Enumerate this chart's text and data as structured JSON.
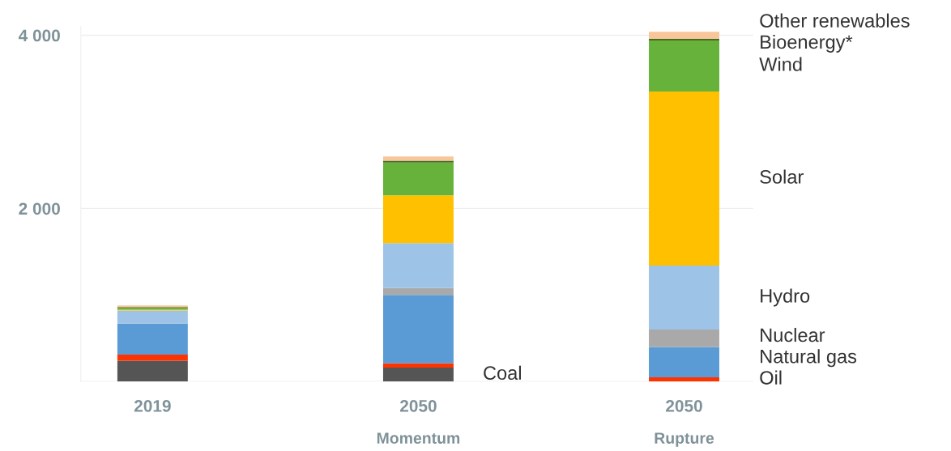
{
  "chart_data": {
    "type": "bar",
    "stacked": true,
    "categories": [
      "2019",
      "2050\nMomentum",
      "2050\nRupture"
    ],
    "series": [
      {
        "name": "Coal",
        "color": "#555555",
        "values": [
          240,
          160,
          0
        ]
      },
      {
        "name": "Oil",
        "color": "#ff3300",
        "values": [
          70,
          50,
          50
        ]
      },
      {
        "name": "Natural gas",
        "color": "#5b9bd5",
        "values": [
          360,
          790,
          350
        ]
      },
      {
        "name": "Nuclear",
        "color": "#a9a9a9",
        "values": [
          0,
          80,
          200
        ]
      },
      {
        "name": "Hydro",
        "color": "#9dc3e6",
        "values": [
          150,
          520,
          740
        ]
      },
      {
        "name": "Solar",
        "color": "#ffc000",
        "values": [
          10,
          550,
          2010
        ]
      },
      {
        "name": "Wind",
        "color": "#66b23a",
        "values": [
          20,
          380,
          590
        ]
      },
      {
        "name": "Bioenergy*",
        "color": "#4a6b1e",
        "values": [
          10,
          20,
          20
        ]
      },
      {
        "name": "Other renewables",
        "color": "#f8c69a",
        "values": [
          20,
          50,
          80
        ]
      }
    ],
    "ylim": [
      0,
      4100
    ],
    "yticks": [
      {
        "value": 0,
        "label": null
      },
      {
        "value": 2000,
        "label": "2 000"
      },
      {
        "value": 4000,
        "label": "4 000"
      }
    ],
    "grid": "y",
    "legend": false
  }
}
